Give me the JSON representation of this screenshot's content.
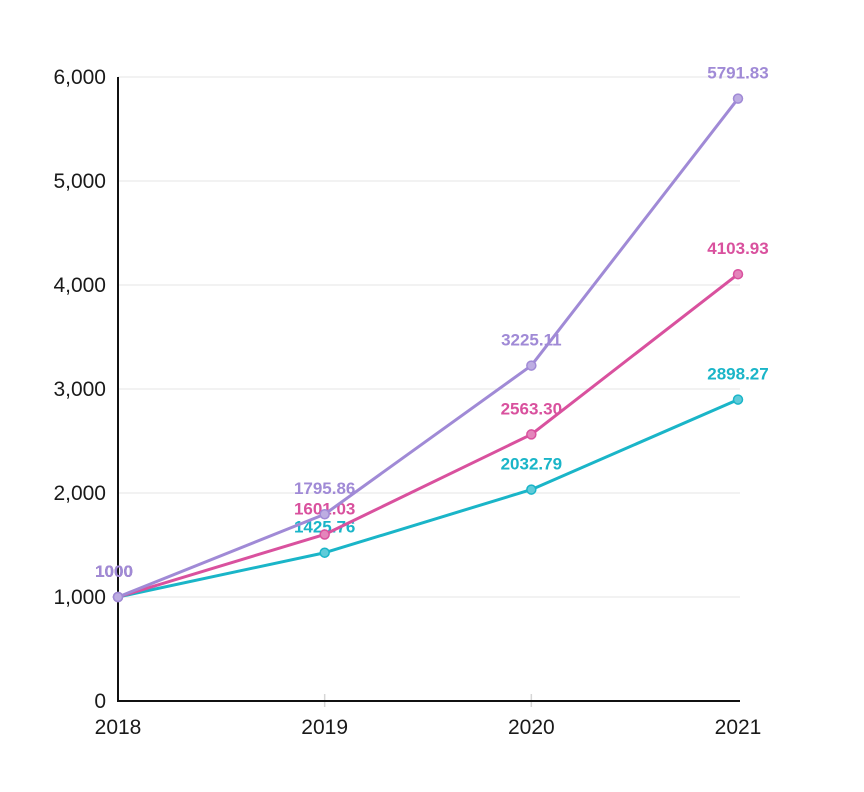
{
  "page": {
    "background_color": "#ffffff"
  },
  "chart_data": {
    "type": "line",
    "title": "",
    "xlabel": "",
    "ylabel": "",
    "x_categories": [
      "2018",
      "2019",
      "2020",
      "2021"
    ],
    "ylim": [
      0,
      6000
    ],
    "y_tick_step": 1000,
    "y_tick_labels": [
      "0",
      "1,000",
      "2,000",
      "3,000",
      "4,000",
      "5,000",
      "6,000"
    ],
    "grid": "horizontal",
    "legend_position": "none",
    "axis_color": "#111111",
    "grid_color": "#e6e6e6",
    "x_tick_color": "#d6d6d6",
    "tick_label_color": "#1a1a1a",
    "series": [
      {
        "name": "purple-series",
        "color": "#a08ad6",
        "values": [
          1000,
          1795.86,
          3225.11,
          5791.83
        ],
        "point_labels": [
          "1000",
          "1795.86",
          "3225.11",
          "5791.83"
        ]
      },
      {
        "name": "pink-series",
        "color": "#d9519e",
        "values": [
          1000,
          1601.03,
          2563.3,
          4103.93
        ],
        "point_labels": [
          "1000",
          "1601.03",
          "2563.30",
          "4103.93"
        ]
      },
      {
        "name": "teal-series",
        "color": "#1ab5c8",
        "values": [
          1000,
          1425.76,
          2032.79,
          2898.27
        ],
        "point_labels": [
          "1000",
          "1425.76",
          "2032.79",
          "2898.27"
        ]
      }
    ]
  }
}
